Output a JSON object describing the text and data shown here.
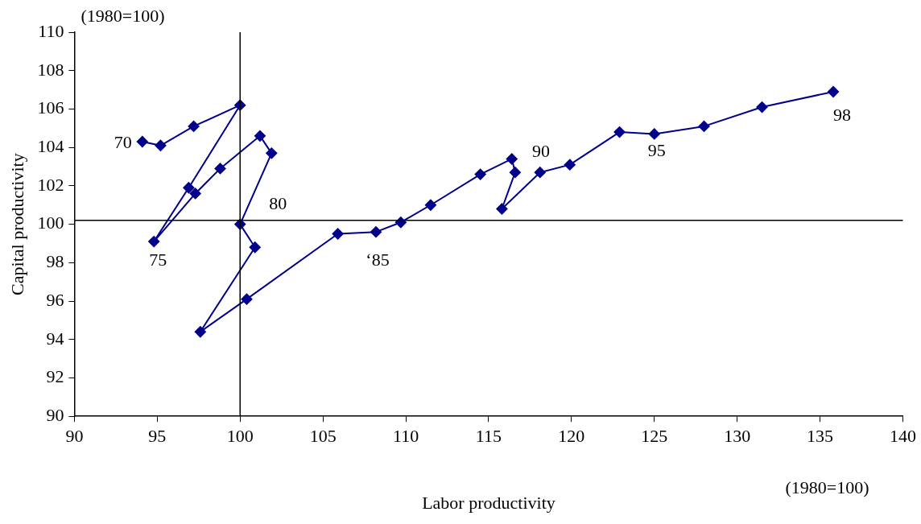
{
  "chart_data": {
    "type": "line",
    "xlabel": "Labor productivity",
    "ylabel": "Capital productivity",
    "x": [
      94.1,
      95.2,
      97.2,
      100.0,
      96.9,
      94.8,
      97.3,
      98.8,
      101.2,
      101.9,
      100.0,
      100.9,
      97.6,
      100.4,
      105.9,
      108.2,
      109.7,
      111.5,
      114.5,
      116.4,
      116.6,
      115.8,
      118.1,
      119.9,
      122.9,
      125.0,
      128.0,
      131.5,
      135.8
    ],
    "series": [
      {
        "color": "#00008b",
        "values": [
          104.3,
          104.1,
          105.1,
          106.2,
          101.9,
          99.1,
          101.6,
          102.9,
          104.6,
          103.7,
          100.0,
          98.8,
          94.4,
          96.1,
          99.5,
          99.6,
          100.1,
          101.0,
          102.6,
          103.4,
          102.7,
          100.8,
          102.7,
          103.1,
          104.8,
          104.7,
          105.1,
          106.1,
          106.9
        ]
      }
    ],
    "xlim": [
      90,
      140
    ],
    "xticks": [
      90,
      95,
      100,
      105,
      110,
      115,
      120,
      125,
      130,
      135,
      140
    ],
    "ylim": [
      90,
      110
    ],
    "yticks": [
      90,
      92,
      94,
      96,
      98,
      100,
      102,
      104,
      106,
      108,
      110
    ],
    "grid": false,
    "legend": false,
    "marker": "diamond",
    "line_style": "solid",
    "ref_lines": [
      {
        "axis": "x",
        "value": 100,
        "color": "#000000"
      },
      {
        "axis": "y",
        "value": 100.2,
        "color": "#000000"
      }
    ],
    "annotations": [
      "(1980=100)",
      "(1980=100)",
      {
        "text": "70",
        "x": 94.1,
        "y": 104.3
      },
      {
        "text": "75",
        "x": 94.8,
        "y": 99.1
      },
      {
        "text": "80",
        "x": 100.0,
        "y": 100.0
      },
      {
        "text": "‘85",
        "x": 108.2,
        "y": 99.6
      },
      {
        "text": "90",
        "x": 116.6,
        "y": 102.7
      },
      {
        "text": "95",
        "x": 125.0,
        "y": 104.7
      },
      {
        "text": "98",
        "x": 135.8,
        "y": 106.9
      }
    ]
  }
}
